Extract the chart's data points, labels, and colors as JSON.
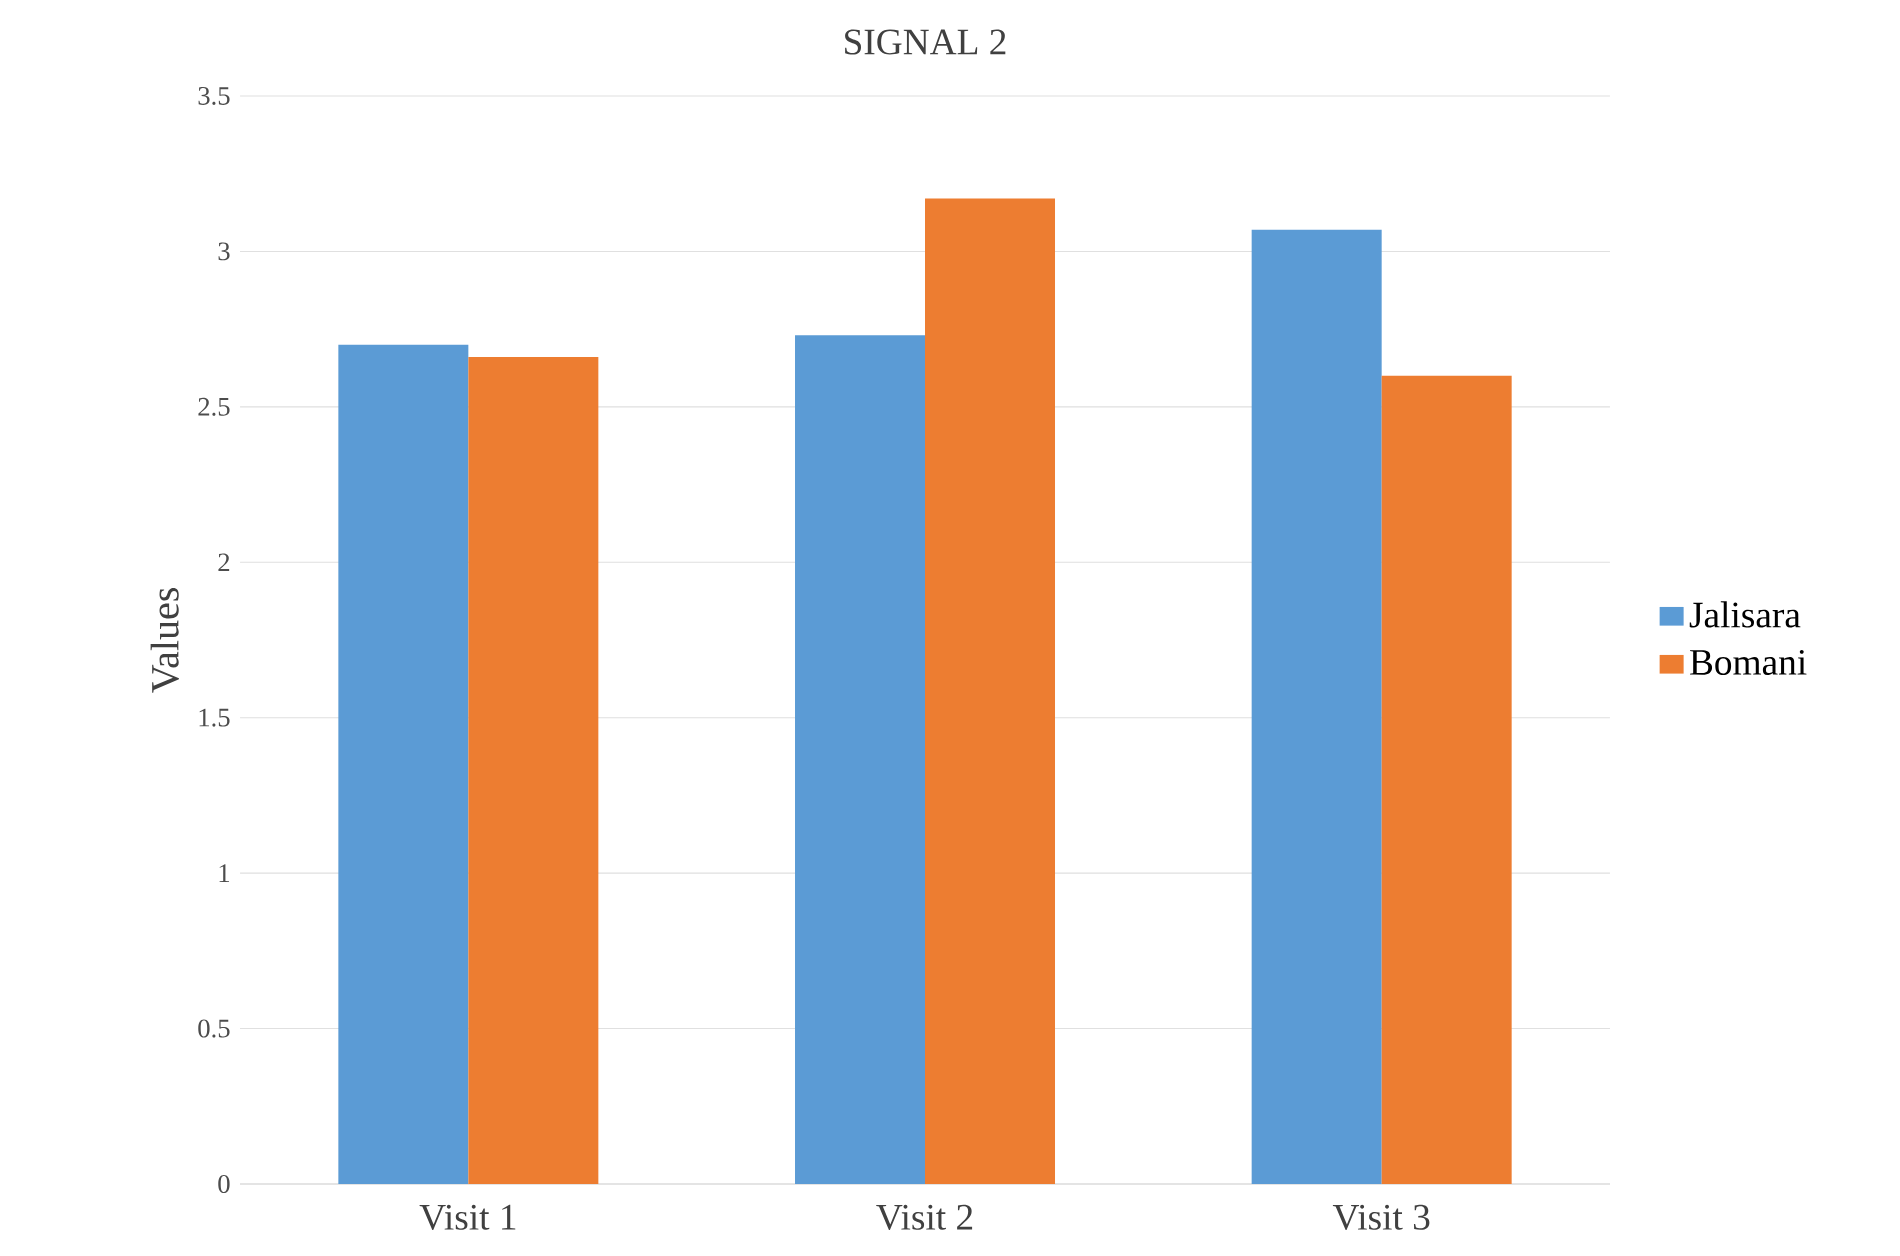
{
  "chart_data": {
    "type": "bar",
    "title": "SIGNAL 2",
    "ylabel": "Values",
    "categories": [
      "Visit 1",
      "Visit 2",
      "Visit 3"
    ],
    "series": [
      {
        "name": "Jalisara",
        "color": "#5b9bd5",
        "values": [
          2.7,
          2.73,
          3.07
        ]
      },
      {
        "name": "Bomani",
        "color": "#ed7d31",
        "values": [
          2.66,
          3.17,
          2.6
        ]
      }
    ],
    "ylim": [
      0,
      3.5
    ],
    "yticks": [
      0,
      0.5,
      1,
      1.5,
      2,
      2.5,
      3,
      3.5
    ],
    "grid": "y",
    "legend": "right"
  }
}
